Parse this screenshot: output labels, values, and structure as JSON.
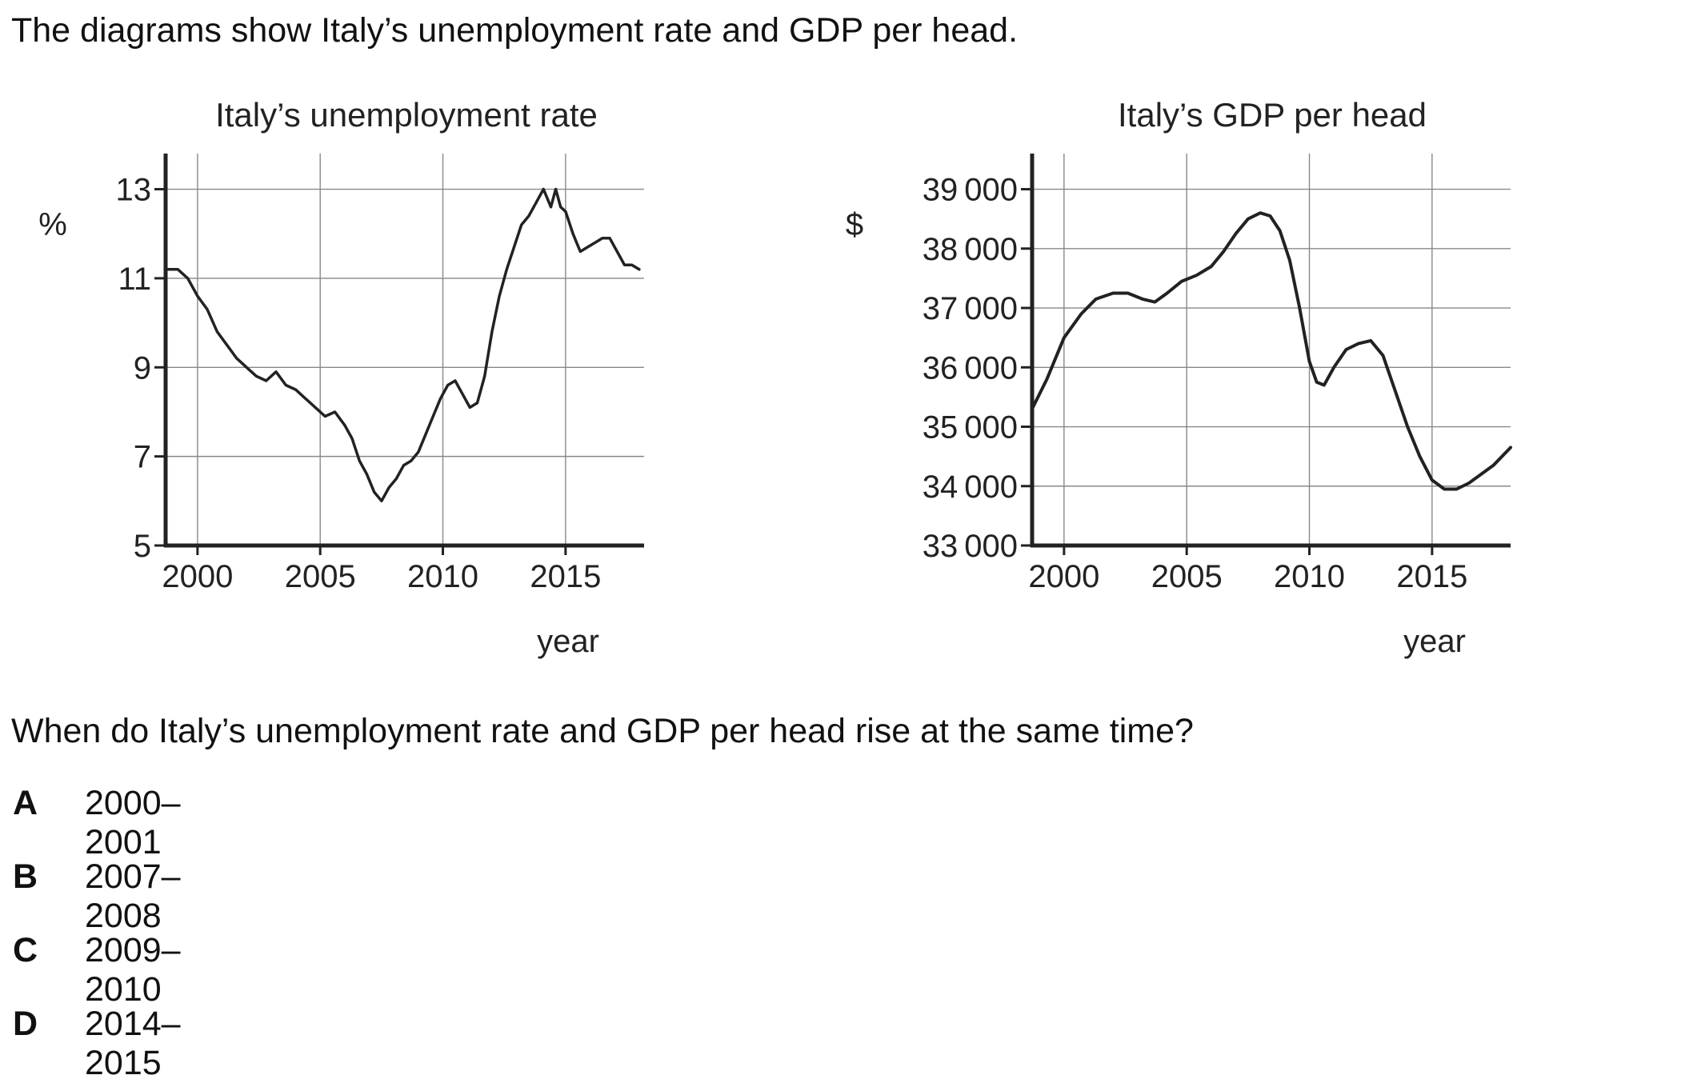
{
  "intro": "The diagrams show Italy’s unemployment rate and GDP per head.",
  "question": "When do Italy’s unemployment rate and GDP per head rise at the same time?",
  "options": [
    {
      "letter": "A",
      "text": "2000–2001"
    },
    {
      "letter": "B",
      "text": "2007–2008"
    },
    {
      "letter": "C",
      "text": "2009–2010"
    },
    {
      "letter": "D",
      "text": "2014–2015"
    }
  ],
  "chart_data": [
    {
      "type": "line",
      "title": "Italy’s unemployment rate",
      "xlabel": "year",
      "ylabel": "%",
      "xlim": [
        1998.7,
        2018.2
      ],
      "ylim": [
        5,
        13.8
      ],
      "xticks": [
        2000,
        2005,
        2010,
        2015
      ],
      "yticks": [
        5,
        7,
        9,
        11,
        13
      ],
      "grid": true,
      "line_color": "#222222",
      "x": [
        1998.7,
        1999.2,
        1999.6,
        2000.0,
        2000.4,
        2000.8,
        2001.2,
        2001.6,
        2002.0,
        2002.4,
        2002.8,
        2003.2,
        2003.6,
        2004.0,
        2004.4,
        2004.8,
        2005.2,
        2005.6,
        2006.0,
        2006.3,
        2006.6,
        2006.9,
        2007.2,
        2007.5,
        2007.8,
        2008.1,
        2008.4,
        2008.7,
        2009.0,
        2009.3,
        2009.6,
        2009.9,
        2010.2,
        2010.5,
        2010.8,
        2011.1,
        2011.4,
        2011.7,
        2012.0,
        2012.3,
        2012.6,
        2012.9,
        2013.2,
        2013.5,
        2013.8,
        2014.1,
        2014.4,
        2014.6,
        2014.8,
        2015.0,
        2015.3,
        2015.6,
        2015.9,
        2016.2,
        2016.5,
        2016.8,
        2017.1,
        2017.4,
        2017.7,
        2018.0
      ],
      "values": [
        11.2,
        11.2,
        11.0,
        10.6,
        10.3,
        9.8,
        9.5,
        9.2,
        9.0,
        8.8,
        8.7,
        8.9,
        8.6,
        8.5,
        8.3,
        8.1,
        7.9,
        8.0,
        7.7,
        7.4,
        6.9,
        6.6,
        6.2,
        6.0,
        6.3,
        6.5,
        6.8,
        6.9,
        7.1,
        7.5,
        7.9,
        8.3,
        8.6,
        8.7,
        8.4,
        8.1,
        8.2,
        8.8,
        9.8,
        10.6,
        11.2,
        11.7,
        12.2,
        12.4,
        12.7,
        13.0,
        12.6,
        13.0,
        12.6,
        12.5,
        12.0,
        11.6,
        11.7,
        11.8,
        11.9,
        11.9,
        11.6,
        11.3,
        11.3,
        11.2
      ]
    },
    {
      "type": "line",
      "title": "Italy’s GDP per head",
      "xlabel": "year",
      "ylabel": "$",
      "xlim": [
        1998.7,
        2018.2
      ],
      "ylim": [
        33000,
        39600
      ],
      "xticks": [
        2000,
        2005,
        2010,
        2015
      ],
      "yticks": [
        33000,
        34000,
        35000,
        36000,
        37000,
        38000,
        39000
      ],
      "grid": true,
      "line_color": "#222222",
      "x": [
        1998.7,
        1999.3,
        2000.0,
        2000.7,
        2001.3,
        2002.0,
        2002.6,
        2003.2,
        2003.7,
        2004.2,
        2004.8,
        2005.4,
        2006.0,
        2006.5,
        2007.0,
        2007.5,
        2008.0,
        2008.4,
        2008.8,
        2009.2,
        2009.6,
        2010.0,
        2010.3,
        2010.6,
        2011.0,
        2011.5,
        2012.0,
        2012.5,
        2013.0,
        2013.5,
        2014.0,
        2014.5,
        2015.0,
        2015.5,
        2016.0,
        2016.5,
        2017.0,
        2017.5,
        2018.2
      ],
      "values": [
        35300,
        35800,
        36500,
        36900,
        37150,
        37250,
        37250,
        37150,
        37100,
        37250,
        37450,
        37550,
        37700,
        37950,
        38250,
        38500,
        38600,
        38550,
        38300,
        37800,
        37000,
        36100,
        35750,
        35700,
        36000,
        36300,
        36400,
        36450,
        36200,
        35600,
        35000,
        34500,
        34100,
        33950,
        33950,
        34050,
        34200,
        34350,
        34650
      ]
    }
  ]
}
